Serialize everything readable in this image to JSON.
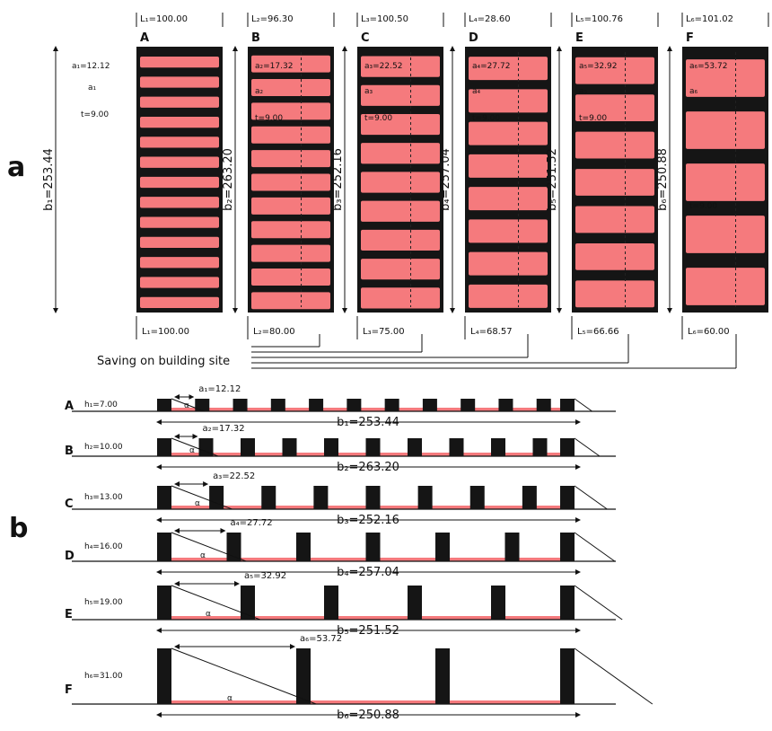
{
  "colors": {
    "block": "#f57a7d",
    "row": "#151515",
    "line": "#111111"
  },
  "panel_a": {
    "letter": "a",
    "footer_caption": "Saving on building site",
    "columns": [
      {
        "letter": "A",
        "l_top": "L₁=100.00",
        "l_bottom": "L₁=100.00",
        "b_label": "b₁=253.44",
        "annotations": [
          "a₁=12.12",
          "a₁",
          "t=9.00"
        ],
        "rows": 13
      },
      {
        "letter": "B",
        "l_top": "L₂=96.30",
        "l_bottom": "L₂=80.00",
        "b_label": "b₂=263.20",
        "annotations": [
          "a₂=17.32",
          "a₂",
          "t=9.00"
        ],
        "rows": 11
      },
      {
        "letter": "C",
        "l_top": "L₃=100.50",
        "l_bottom": "L₃=75.00",
        "b_label": "b₃=252.16",
        "annotations": [
          "a₃=22.52",
          "a₃",
          "t=9.00"
        ],
        "rows": 9
      },
      {
        "letter": "D",
        "l_top": "L₄=28.60",
        "l_bottom": "L₄=68.57",
        "b_label": "b₄=257.04",
        "annotations": [
          "a₄=27.72",
          "a₄",
          "t=9.00"
        ],
        "rows": 8
      },
      {
        "letter": "E",
        "l_top": "L₅=100.76",
        "l_bottom": "L₅=66.66",
        "b_label": "b₅=251.52",
        "annotations": [
          "a₅=32.92",
          "a₅",
          "t=9.00"
        ],
        "rows": 7
      },
      {
        "letter": "F",
        "l_top": "L₆=101.02",
        "l_bottom": "L₆=60.00",
        "b_label": "b₆=250.88",
        "annotations": [
          "a₆=53.72",
          "a₆",
          "t=9.00"
        ],
        "rows": 5
      }
    ]
  },
  "panel_b": {
    "letter": "b",
    "rows": [
      {
        "letter": "A",
        "h_label": "h₁=7.00",
        "a_label": "a₁=12.12",
        "b_label": "b₁=253.44",
        "blocks": 12,
        "alpha": "α"
      },
      {
        "letter": "B",
        "h_label": "h₂=10.00",
        "a_label": "a₂=17.32",
        "b_label": "b₂=263.20",
        "blocks": 11,
        "alpha": "α"
      },
      {
        "letter": "C",
        "h_label": "h₃=13.00",
        "a_label": "a₃=22.52",
        "b_label": "b₃=252.16",
        "blocks": 9,
        "alpha": "α"
      },
      {
        "letter": "D",
        "h_label": "h₄=16.00",
        "a_label": "a₄=27.72",
        "b_label": "b₄=257.04",
        "blocks": 7,
        "alpha": "α"
      },
      {
        "letter": "E",
        "h_label": "h₅=19.00",
        "a_label": "a₅=32.92",
        "b_label": "b₅=251.52",
        "blocks": 6,
        "alpha": "α"
      },
      {
        "letter": "F",
        "h_label": "h₆=31.00",
        "a_label": "a₆=53.72",
        "b_label": "b₆=250.88",
        "blocks": 4,
        "alpha": "α"
      }
    ]
  }
}
